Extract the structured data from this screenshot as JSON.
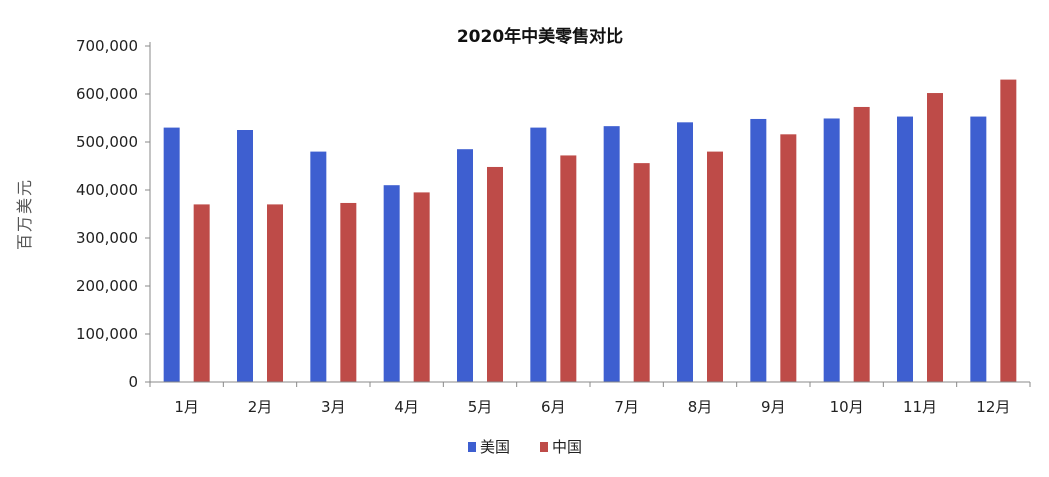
{
  "chart_data": {
    "type": "bar",
    "title": "2020年中美零售对比",
    "xlabel": "",
    "ylabel": "百万美元",
    "categories": [
      "1月",
      "2月",
      "3月",
      "4月",
      "5月",
      "6月",
      "7月",
      "8月",
      "9月",
      "10月",
      "11月",
      "12月"
    ],
    "series": [
      {
        "name": "美国",
        "color": "#3E5FD0",
        "values": [
          530000,
          525000,
          480000,
          410000,
          485000,
          530000,
          533000,
          541000,
          548000,
          549000,
          553000,
          553000
        ]
      },
      {
        "name": "中国",
        "color": "#BE4B48",
        "values": [
          370000,
          370000,
          373000,
          395000,
          448000,
          472000,
          456000,
          480000,
          516000,
          573000,
          602000,
          630000
        ]
      }
    ],
    "ylim": [
      0,
      700000
    ],
    "yticks": [
      0,
      100000,
      200000,
      300000,
      400000,
      500000,
      600000,
      700000
    ],
    "ytick_labels": [
      "0",
      "100,000",
      "200,000",
      "300,000",
      "400,000",
      "500,000",
      "600,000",
      "700,000"
    ],
    "grid": false,
    "legend_position": "bottom"
  }
}
